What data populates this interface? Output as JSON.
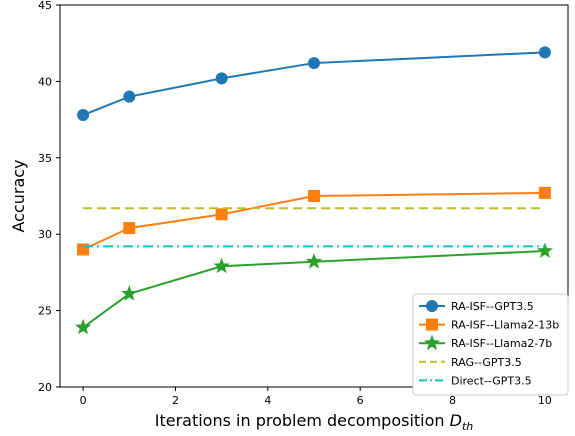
{
  "chart_data": {
    "type": "line",
    "title": "",
    "xlabel": "Iterations in problem decomposition ",
    "xlabel_math": "D",
    "xlabel_sub": "th",
    "ylabel": "Accuracy",
    "xlim": [
      -0.5,
      10.5
    ],
    "ylim": [
      20,
      45
    ],
    "xticks": [
      0,
      2,
      4,
      6,
      8,
      10
    ],
    "yticks": [
      20,
      25,
      30,
      35,
      40,
      45
    ],
    "grid": false,
    "legend_position": "lower-right",
    "series": [
      {
        "name": "RA-ISF--GPT3.5",
        "x": [
          0,
          1,
          3,
          5,
          10
        ],
        "y": [
          37.8,
          39.0,
          40.2,
          41.2,
          41.9
        ],
        "color": "#1f77b4",
        "marker": "circle",
        "line": "solid"
      },
      {
        "name": "RA-ISF--Llama2-13b",
        "x": [
          0,
          1,
          3,
          5,
          10
        ],
        "y": [
          29.0,
          30.4,
          31.3,
          32.5,
          32.7
        ],
        "color": "#ff7f0e",
        "marker": "square",
        "line": "solid"
      },
      {
        "name": "RA-ISF--Llama2-7b",
        "x": [
          0,
          1,
          3,
          5,
          10
        ],
        "y": [
          23.9,
          26.1,
          27.9,
          28.2,
          28.9
        ],
        "color": "#2ca02c",
        "marker": "star",
        "line": "solid"
      },
      {
        "name": "RAG--GPT3.5",
        "x": [
          0,
          10
        ],
        "y": [
          31.7,
          31.7
        ],
        "color": "#bcbd22",
        "marker": "none",
        "line": "dashed"
      },
      {
        "name": "Direct--GPT3.5",
        "x": [
          0,
          10
        ],
        "y": [
          29.2,
          29.2
        ],
        "color": "#17becf",
        "marker": "none",
        "line": "dashdot"
      }
    ]
  }
}
